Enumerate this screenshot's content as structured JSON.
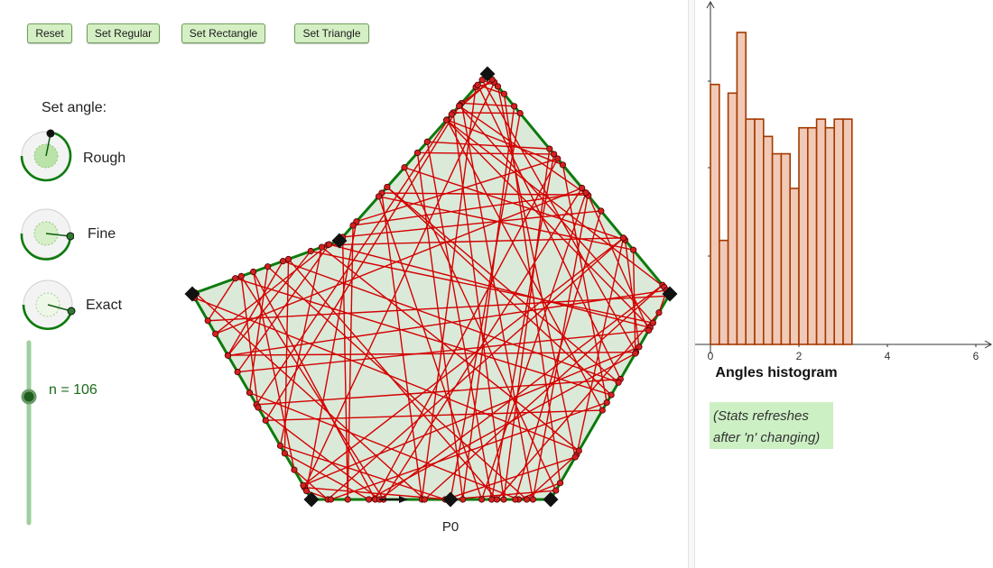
{
  "toolbar": {
    "reset": "Reset",
    "set_regular": "Set Regular",
    "set_rectangle": "Set Rectangle",
    "set_triangle": "Set Triangle"
  },
  "angle_controls": {
    "title": "Set angle:",
    "rough": "Rough",
    "fine": "Fine",
    "exact": "Exact"
  },
  "n_slider": {
    "label": "n = 106",
    "value": 106
  },
  "start_point": "P0",
  "histogram": {
    "title": "Angles histogram",
    "x_ticks": [
      "0",
      "2",
      "4",
      "6"
    ],
    "xlim": [
      0,
      6
    ],
    "bin_width": 0.2,
    "values": [
      30,
      12,
      29,
      36,
      26,
      26,
      24,
      22,
      22,
      18,
      25,
      25,
      26,
      25,
      26,
      26
    ],
    "max_value": 36
  },
  "stats_note": {
    "line1": "(Stats refreshes",
    "line2": "after 'n'  changing)"
  },
  "colors": {
    "polygon_fill": "#dbe9d9",
    "polygon_edge": "#0d7a0d",
    "path": "#d40000",
    "bar_fill": "#f1c9b7",
    "bar_edge": "#a33a00",
    "button_bg": "#d5efc4",
    "slider": "#7fbf7f",
    "stats_bg": "#ccf0c4"
  }
}
